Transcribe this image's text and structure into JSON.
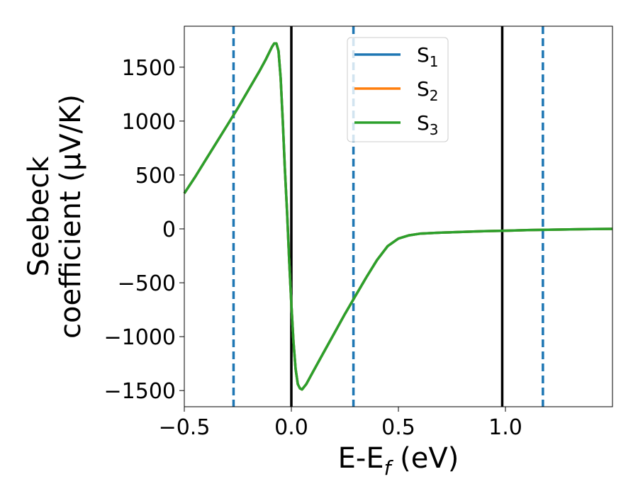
{
  "chart_data": {
    "type": "line",
    "xlabel_main": "E-E",
    "xlabel_sub": "f",
    "xlabel_tail": " (eV)",
    "ylabel_line1": "Seebeck",
    "ylabel_line2": "coefficient  (μV/K)",
    "xlim": [
      -0.5,
      1.5
    ],
    "ylim": [
      -1650,
      1880
    ],
    "x_ticks": [
      -0.5,
      0.0,
      0.5,
      1.0
    ],
    "x_tick_labels": [
      "−0.5",
      "0.0",
      "0.5",
      "1.0"
    ],
    "y_ticks": [
      -1500,
      -1000,
      -500,
      0,
      500,
      1000,
      1500
    ],
    "y_tick_labels": [
      "−1500",
      "−1000",
      "−500",
      "0",
      "500",
      "1000",
      "1500"
    ],
    "grid": false,
    "legend_position": "top-center",
    "vlines_solid": [
      0.0,
      0.985
    ],
    "vlines_dashed": [
      -0.27,
      0.29,
      1.175
    ],
    "x": [
      -0.5,
      -0.45,
      -0.4,
      -0.35,
      -0.3,
      -0.25,
      -0.2,
      -0.15,
      -0.12,
      -0.1,
      -0.09,
      -0.08,
      -0.07,
      -0.06,
      -0.05,
      -0.04,
      -0.03,
      -0.02,
      -0.01,
      0.0,
      0.01,
      0.02,
      0.03,
      0.04,
      0.05,
      0.07,
      0.1,
      0.15,
      0.2,
      0.25,
      0.3,
      0.35,
      0.4,
      0.45,
      0.5,
      0.55,
      0.6,
      0.7,
      0.8,
      0.9,
      1.0,
      1.1,
      1.2,
      1.3,
      1.4,
      1.5
    ],
    "series": [
      {
        "name_main": "S",
        "name_sub": "1",
        "color": "#1f77b4",
        "values": [
          330,
          480,
          640,
          800,
          960,
          1120,
          1290,
          1460,
          1570,
          1650,
          1690,
          1720,
          1720,
          1650,
          1400,
          1000,
          550,
          150,
          -300,
          -700,
          -1050,
          -1300,
          -1440,
          -1480,
          -1490,
          -1440,
          -1330,
          -1150,
          -970,
          -790,
          -620,
          -450,
          -290,
          -160,
          -90,
          -60,
          -45,
          -35,
          -28,
          -22,
          -17,
          -12,
          -8,
          -5,
          -2,
          0
        ]
      },
      {
        "name_main": "S",
        "name_sub": "2",
        "color": "#ff7f0e",
        "values": [
          330,
          480,
          640,
          800,
          960,
          1120,
          1290,
          1460,
          1570,
          1650,
          1690,
          1720,
          1720,
          1650,
          1400,
          1000,
          550,
          150,
          -300,
          -700,
          -1050,
          -1300,
          -1440,
          -1480,
          -1490,
          -1440,
          -1330,
          -1150,
          -970,
          -790,
          -620,
          -450,
          -290,
          -160,
          -90,
          -60,
          -45,
          -35,
          -28,
          -22,
          -17,
          -12,
          -8,
          -5,
          -2,
          0
        ]
      },
      {
        "name_main": "S",
        "name_sub": "3",
        "color": "#2ca02c",
        "values": [
          330,
          480,
          640,
          800,
          960,
          1120,
          1290,
          1460,
          1570,
          1650,
          1690,
          1720,
          1720,
          1650,
          1400,
          1000,
          550,
          150,
          -300,
          -700,
          -1050,
          -1300,
          -1440,
          -1480,
          -1490,
          -1440,
          -1330,
          -1150,
          -970,
          -790,
          -620,
          -450,
          -290,
          -160,
          -90,
          -60,
          -45,
          -35,
          -28,
          -22,
          -17,
          -12,
          -8,
          -5,
          -2,
          0
        ]
      }
    ]
  }
}
